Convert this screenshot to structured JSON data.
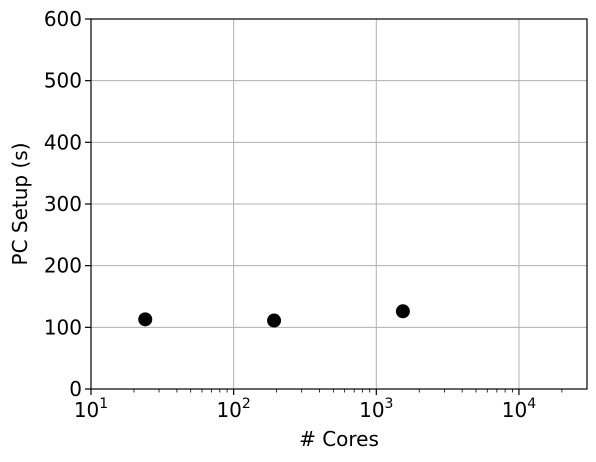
{
  "chart_data": {
    "type": "scatter",
    "xlabel": "# Cores",
    "ylabel": "PC Setup (s)",
    "xscale": "log",
    "xlim": [
      10,
      30000
    ],
    "ylim": [
      0,
      600
    ],
    "grid": true,
    "x_ticks": [
      {
        "value": 10,
        "base": "10",
        "exp": "1"
      },
      {
        "value": 100,
        "base": "10",
        "exp": "2"
      },
      {
        "value": 1000,
        "base": "10",
        "exp": "3"
      },
      {
        "value": 10000,
        "base": "10",
        "exp": "4"
      }
    ],
    "y_ticks": [
      0,
      100,
      200,
      300,
      400,
      500,
      600
    ],
    "marker_color": "#000000",
    "points": [
      {
        "x": 24,
        "y": 113
      },
      {
        "x": 192,
        "y": 111
      },
      {
        "x": 1536,
        "y": 126
      }
    ]
  }
}
